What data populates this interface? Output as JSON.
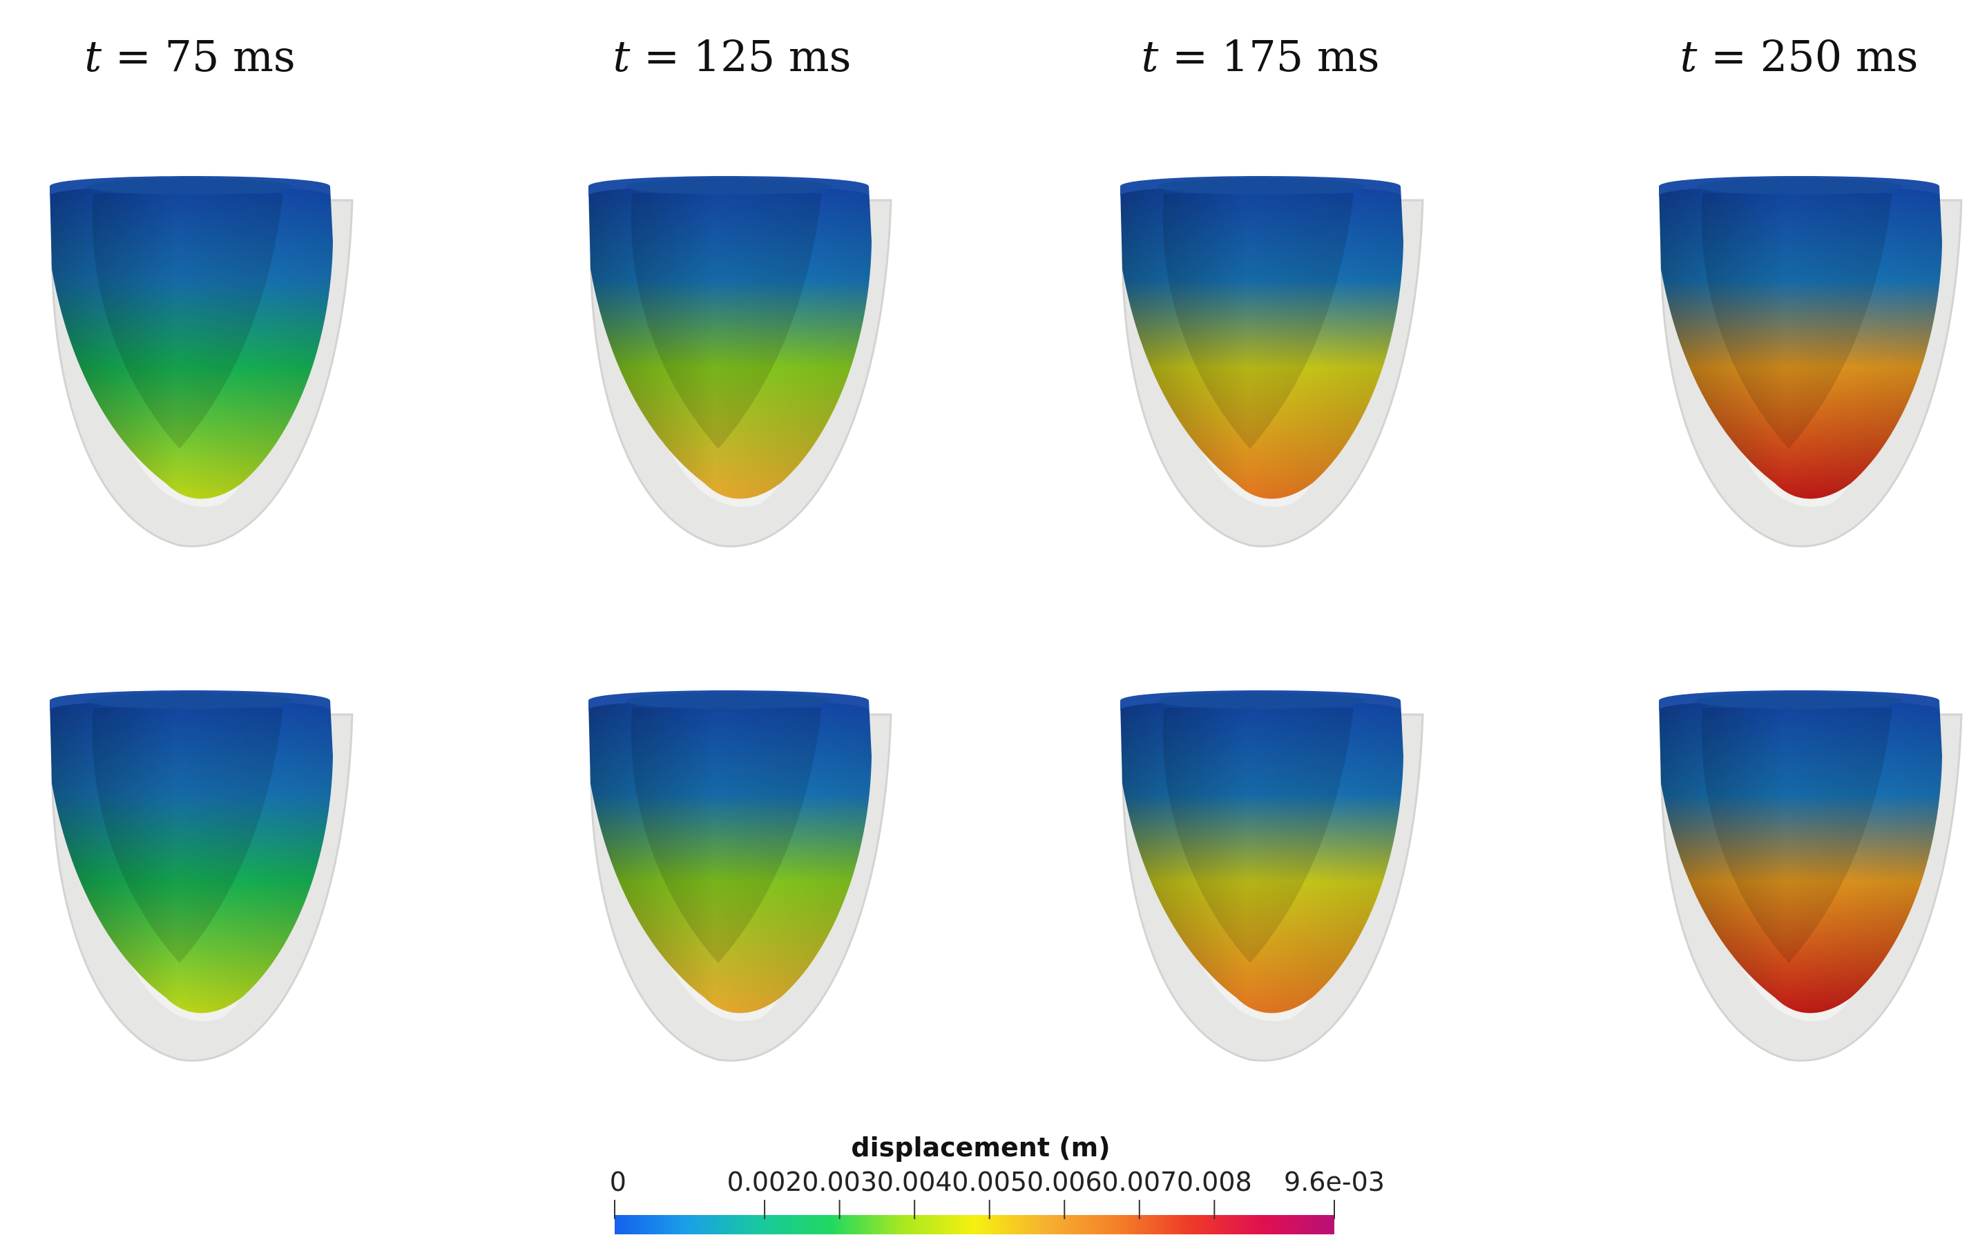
{
  "columns": [
    {
      "prefix": "t",
      "suffix": " = 75 ms",
      "tip_color": "#c8e018",
      "mid_color": "#18c05a"
    },
    {
      "prefix": "t",
      "suffix": " = 125 ms",
      "tip_color": "#f2b030",
      "mid_color": "#8ed820"
    },
    {
      "prefix": "t",
      "suffix": " = 175 ms",
      "tip_color": "#ee7a22",
      "mid_color": "#d8d81c"
    },
    {
      "prefix": "t",
      "suffix": " = 250 ms",
      "tip_color": "#c81a18",
      "mid_color": "#f0a020"
    }
  ],
  "colorbar": {
    "title": "displacement (m)",
    "min_label": "0",
    "max_label": "9.6e-03",
    "min_value": 0,
    "max_value": 0.0096,
    "ticks": [
      {
        "value": 0.002,
        "label": "0.002"
      },
      {
        "value": 0.003,
        "label": "0.003"
      },
      {
        "value": 0.004,
        "label": "0.004"
      },
      {
        "value": 0.005,
        "label": "0.005"
      },
      {
        "value": 0.006,
        "label": "0.006"
      },
      {
        "value": 0.007,
        "label": "0.007"
      },
      {
        "value": 0.008,
        "label": "0.008"
      }
    ],
    "colors": [
      "#1560ee",
      "#1a9fe8",
      "#18c8a0",
      "#20d860",
      "#a8e820",
      "#f6f010",
      "#f6b030",
      "#f48028",
      "#ee3a28",
      "#e01050",
      "#b81078"
    ]
  },
  "base_color": "#1650c0"
}
